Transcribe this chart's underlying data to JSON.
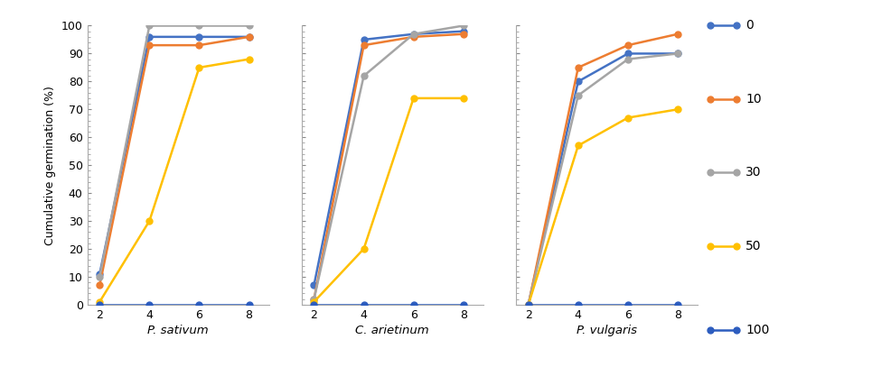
{
  "x": [
    2,
    4,
    6,
    8
  ],
  "species": [
    "P. sativum",
    "C. arietinum",
    "P. vulgaris"
  ],
  "series_labels": [
    "0",
    "10",
    "30",
    "50",
    "100"
  ],
  "colors": [
    "#4472c4",
    "#ed7d31",
    "#a5a5a5",
    "#ffc000",
    "#2d5dbf"
  ],
  "marker": "o",
  "linewidth": 1.8,
  "markersize": 5,
  "P_sativum": {
    "0": [
      11,
      96,
      96,
      96
    ],
    "10": [
      7,
      93,
      93,
      96
    ],
    "30": [
      10,
      100,
      100,
      100
    ],
    "50": [
      1,
      30,
      85,
      88
    ],
    "100": [
      0,
      0,
      0,
      0
    ]
  },
  "C_arietinum": {
    "0": [
      7,
      95,
      97,
      98
    ],
    "10": [
      2,
      93,
      96,
      97
    ],
    "30": [
      2,
      82,
      97,
      100
    ],
    "50": [
      1,
      20,
      74,
      74
    ],
    "100": [
      0,
      0,
      0,
      0
    ]
  },
  "P_vulgaris": {
    "0": [
      0,
      80,
      90,
      90
    ],
    "10": [
      0,
      85,
      93,
      97
    ],
    "30": [
      0,
      75,
      88,
      90
    ],
    "50": [
      0,
      57,
      67,
      70
    ],
    "100": [
      0,
      0,
      0,
      0
    ]
  },
  "ylabel": "Cumulative germination (%)",
  "ylim": [
    0,
    100
  ],
  "yticks": [
    0,
    10,
    20,
    30,
    40,
    50,
    60,
    70,
    80,
    90,
    100
  ],
  "xticks": [
    2,
    4,
    6,
    8
  ],
  "background_color": "#ffffff"
}
